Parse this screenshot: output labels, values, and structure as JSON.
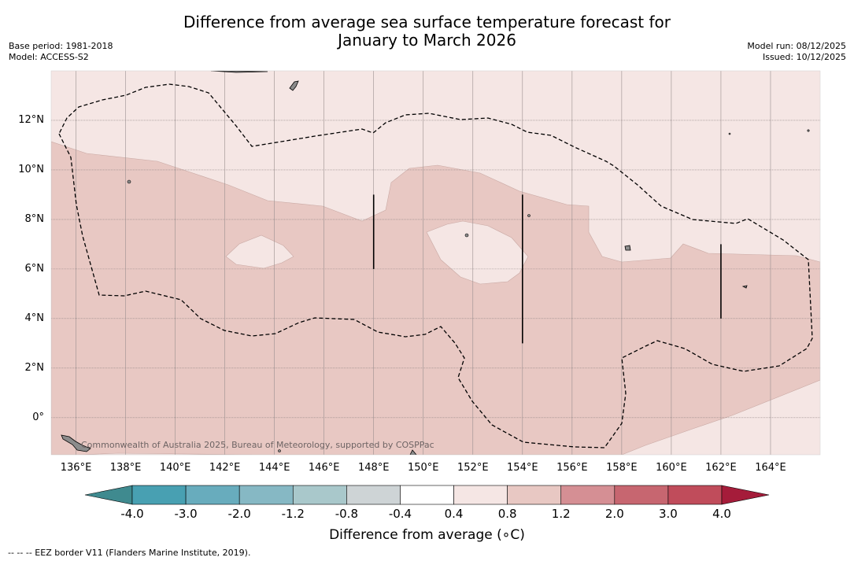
{
  "header": {
    "title_line1": "Difference from average sea surface temperature forecast for",
    "title_line2": "January to March 2026",
    "base_period": "Base period: 1981-2018",
    "model": "Model: ACCESS-S2",
    "model_run": "Model run: 08/12/2025",
    "issued": "Issued: 10/12/2025"
  },
  "map": {
    "lon_range": [
      135,
      166
    ],
    "lat_range": [
      -1.5,
      14
    ],
    "lon_ticks": [
      136,
      138,
      140,
      142,
      144,
      146,
      148,
      150,
      152,
      154,
      156,
      158,
      160,
      162,
      164
    ],
    "lon_tick_labels": [
      "136°E",
      "138°E",
      "140°E",
      "142°E",
      "144°E",
      "146°E",
      "148°E",
      "150°E",
      "152°E",
      "154°E",
      "156°E",
      "158°E",
      "160°E",
      "162°E",
      "164°E"
    ],
    "lat_ticks": [
      12,
      10,
      8,
      6,
      4,
      2,
      0
    ],
    "lat_tick_labels": [
      "12°N",
      "10°N",
      "8°N",
      "6°N",
      "4°N",
      "2°N",
      "0°"
    ],
    "eez_segments": [
      {
        "lon": 148,
        "lat_from": 9,
        "lat_to": 6
      },
      {
        "lon": 154,
        "lat_from": 9,
        "lat_to": 3
      },
      {
        "lon": 162,
        "lat_from": 7,
        "lat_to": 4
      }
    ],
    "copyright": "Commonwealth of Australia 2025, Bureau of Meteorology, supported by COSPPac"
  },
  "colorbar": {
    "label": "Difference from average (∘C)",
    "tick_labels": [
      "-4.0",
      "-3.0",
      "-2.0",
      "-1.2",
      "-0.8",
      "-0.4",
      "0.4",
      "0.8",
      "1.2",
      "2.0",
      "3.0",
      "4.0"
    ],
    "colors": [
      "#3f8a8f",
      "#48a0b2",
      "#68acbd",
      "#86b8c4",
      "#a9c8cb",
      "#ced4d6",
      "#ffffff",
      "#f5e6e4",
      "#e8c8c3",
      "#d58f94",
      "#c76670",
      "#c04c5b",
      "#a51c3a"
    ]
  },
  "footnote": "--  --  -- EEZ border V11 (Flanders Marine Institute, 2019)."
}
